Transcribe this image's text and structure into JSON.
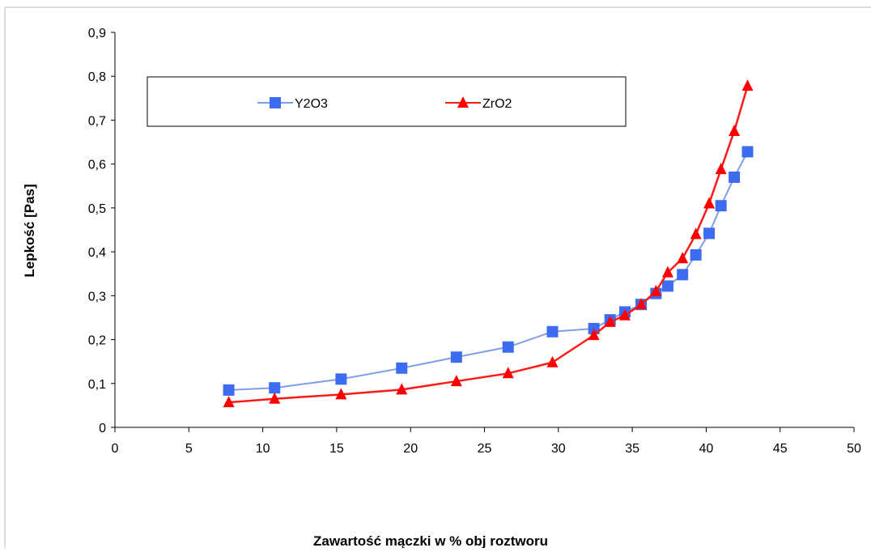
{
  "chart_data": {
    "type": "line",
    "title": "",
    "xlabel": "Zawartość mączki w % obj roztworu",
    "ylabel": "Lepkość [Pas]",
    "xlim": [
      0,
      50
    ],
    "ylim": [
      0,
      0.9
    ],
    "x_ticks": [
      "0",
      "5",
      "10",
      "15",
      "20",
      "25",
      "30",
      "35",
      "40",
      "45",
      "50"
    ],
    "y_ticks": [
      "0",
      "0,1",
      "0,2",
      "0,3",
      "0,4",
      "0,5",
      "0,6",
      "0,7",
      "0,8",
      "0,9"
    ],
    "grid": false,
    "legend_position": "top",
    "series": [
      {
        "name": "Y2O3",
        "color": "#7f9ee8",
        "marker_color": "#3d6cf0",
        "marker": "square",
        "x": [
          7.7,
          10.8,
          15.3,
          19.4,
          23.1,
          26.6,
          29.6,
          32.4,
          33.5,
          34.5,
          35.6,
          36.6,
          37.4,
          38.4,
          39.3,
          40.2,
          41.0,
          41.9,
          42.8
        ],
        "y": [
          0.085,
          0.09,
          0.11,
          0.135,
          0.16,
          0.183,
          0.218,
          0.225,
          0.245,
          0.263,
          0.28,
          0.305,
          0.322,
          0.348,
          0.393,
          0.442,
          0.505,
          0.57,
          0.628
        ]
      },
      {
        "name": "ZrO2",
        "color": "#ff1a1a",
        "marker_color": "#ff0000",
        "marker": "triangle",
        "x": [
          7.7,
          10.8,
          15.3,
          19.4,
          23.1,
          26.6,
          29.6,
          32.4,
          33.5,
          34.5,
          35.6,
          36.6,
          37.4,
          38.4,
          39.3,
          40.2,
          41.0,
          41.9,
          42.8
        ],
        "y": [
          0.057,
          0.065,
          0.075,
          0.086,
          0.105,
          0.123,
          0.148,
          0.21,
          0.24,
          0.255,
          0.28,
          0.31,
          0.353,
          0.385,
          0.44,
          0.51,
          0.588,
          0.675,
          0.778
        ]
      }
    ]
  }
}
